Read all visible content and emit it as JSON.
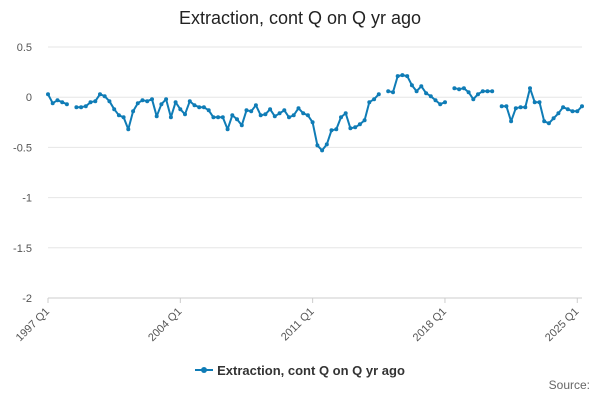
{
  "chart_data": {
    "type": "line",
    "title": "Extraction, cont Q on Q yr ago",
    "xlabel": "",
    "ylabel": "",
    "ylim": [
      -2,
      0.5
    ],
    "yticks": [
      0.5,
      0,
      -0.5,
      -1,
      -1.5,
      -2
    ],
    "ytick_labels": [
      "0.5",
      "0",
      "-0.5",
      "-1",
      "-1.5",
      "-2"
    ],
    "xtick_labels": [
      "1997 Q1",
      "2004 Q1",
      "2011 Q1",
      "2018 Q1",
      "2025 Q1"
    ],
    "start_year": 1997,
    "grid": true,
    "legend_position": "bottom",
    "series_color": "#0f7cb6",
    "series": [
      {
        "name": "Extraction, cont Q on Q yr ago",
        "values": [
          0.03,
          -0.06,
          -0.03,
          -0.05,
          -0.07,
          null,
          -0.1,
          -0.1,
          -0.09,
          -0.05,
          -0.04,
          0.03,
          0.01,
          -0.04,
          -0.12,
          -0.18,
          -0.2,
          -0.32,
          -0.14,
          -0.06,
          -0.03,
          -0.04,
          -0.02,
          -0.19,
          -0.07,
          -0.02,
          -0.2,
          -0.05,
          -0.12,
          -0.17,
          -0.04,
          -0.08,
          -0.1,
          -0.1,
          -0.13,
          -0.2,
          -0.2,
          -0.2,
          -0.32,
          -0.18,
          -0.22,
          -0.28,
          -0.13,
          -0.14,
          -0.08,
          -0.18,
          -0.17,
          -0.12,
          -0.19,
          -0.16,
          -0.13,
          -0.2,
          -0.18,
          -0.11,
          -0.16,
          -0.18,
          -0.25,
          -0.48,
          -0.53,
          -0.47,
          -0.33,
          -0.32,
          -0.2,
          -0.16,
          -0.31,
          -0.3,
          -0.27,
          -0.23,
          -0.05,
          -0.02,
          0.03,
          null,
          0.06,
          0.05,
          0.21,
          0.22,
          0.21,
          0.12,
          0.06,
          0.11,
          0.04,
          0.01,
          -0.03,
          -0.07,
          -0.05,
          null,
          0.09,
          0.08,
          0.09,
          0.05,
          -0.02,
          0.03,
          0.06,
          0.06,
          0.06,
          null,
          -0.09,
          -0.09,
          -0.24,
          -0.11,
          -0.1,
          -0.1,
          0.09,
          -0.05,
          -0.05,
          -0.24,
          -0.26,
          -0.21,
          -0.16,
          -0.1,
          -0.12,
          -0.14,
          -0.14,
          -0.09
        ]
      }
    ]
  },
  "footer": {
    "source_label": "Source:"
  }
}
